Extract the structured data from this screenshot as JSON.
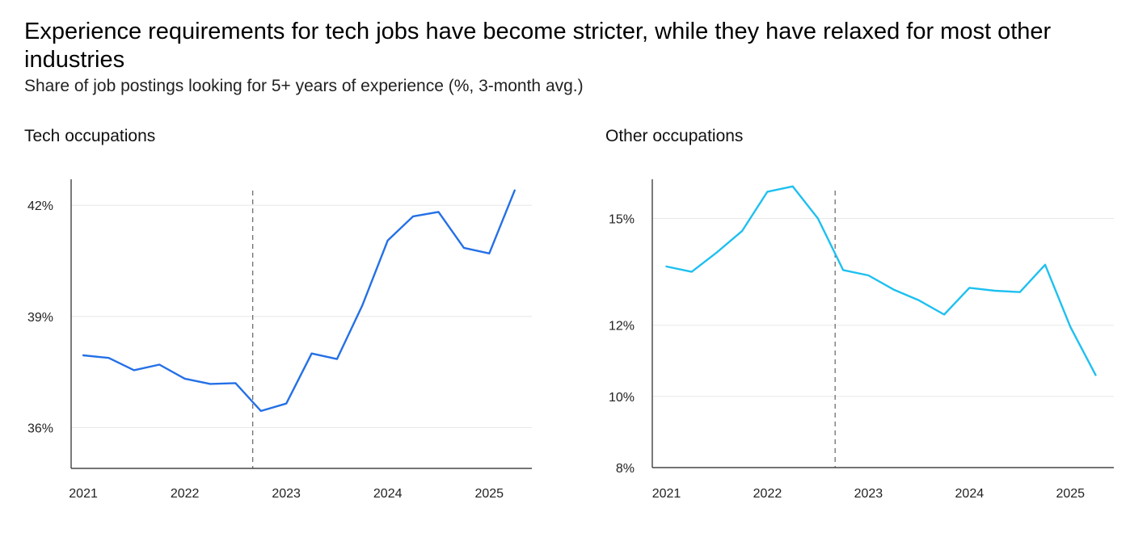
{
  "title": "Experience requirements for tech jobs have become stricter, while they have relaxed for most other industries",
  "subtitle": "Share of job postings looking for 5+ years of experience (%, 3-month avg.)",
  "colors": {
    "tech_line": "#2470e6",
    "other_line": "#1ec0f0",
    "grid": "#e8e8e8",
    "axis": "#222222",
    "marker": "#444444"
  },
  "chart_data": [
    {
      "type": "line",
      "title": "Tech occupations",
      "xlabel": "",
      "ylabel": "",
      "xlim": [
        2020.88,
        2025.42
      ],
      "ylim": [
        34.9,
        42.7
      ],
      "y_ticks": [
        36,
        39,
        42
      ],
      "y_tick_labels": [
        "36%",
        "39%",
        "42%"
      ],
      "x_ticks": [
        2021,
        2022,
        2023,
        2024,
        2025
      ],
      "x_tick_labels": [
        "2021",
        "2022",
        "2023",
        "2024",
        "2025"
      ],
      "vline_x": 2022.67,
      "grid": true,
      "series": [
        {
          "name": "Tech occupations",
          "x": [
            2021.0,
            2021.25,
            2021.5,
            2021.75,
            2022.0,
            2022.25,
            2022.5,
            2022.75,
            2023.0,
            2023.25,
            2023.5,
            2023.75,
            2024.0,
            2024.25,
            2024.5,
            2024.75,
            2025.0,
            2025.25
          ],
          "values": [
            37.95,
            37.88,
            37.55,
            37.7,
            37.32,
            37.18,
            37.2,
            36.45,
            36.65,
            38.0,
            37.85,
            39.3,
            41.05,
            41.7,
            41.82,
            40.85,
            40.7,
            42.4
          ]
        }
      ]
    },
    {
      "type": "line",
      "title": "Other occupations",
      "xlabel": "",
      "ylabel": "",
      "xlim": [
        2020.86,
        2025.43
      ],
      "ylim": [
        8.0,
        16.1
      ],
      "y_ticks": [
        8,
        10,
        12,
        15
      ],
      "y_tick_labels": [
        "8%",
        "10%",
        "12%",
        "15%"
      ],
      "x_ticks": [
        2021,
        2022,
        2023,
        2024,
        2025
      ],
      "x_tick_labels": [
        "2021",
        "2022",
        "2023",
        "2024",
        "2025"
      ],
      "vline_x": 2022.67,
      "grid": true,
      "series": [
        {
          "name": "Other occupations",
          "x": [
            2021.0,
            2021.25,
            2021.5,
            2021.75,
            2022.0,
            2022.25,
            2022.5,
            2022.75,
            2023.0,
            2023.25,
            2023.5,
            2023.75,
            2024.0,
            2024.25,
            2024.5,
            2024.75,
            2025.0,
            2025.25
          ],
          "values": [
            13.65,
            13.5,
            14.05,
            14.65,
            15.75,
            15.9,
            15.0,
            13.55,
            13.4,
            13.0,
            12.7,
            12.3,
            13.05,
            12.97,
            12.93,
            13.7,
            11.95,
            10.6
          ]
        }
      ]
    }
  ]
}
